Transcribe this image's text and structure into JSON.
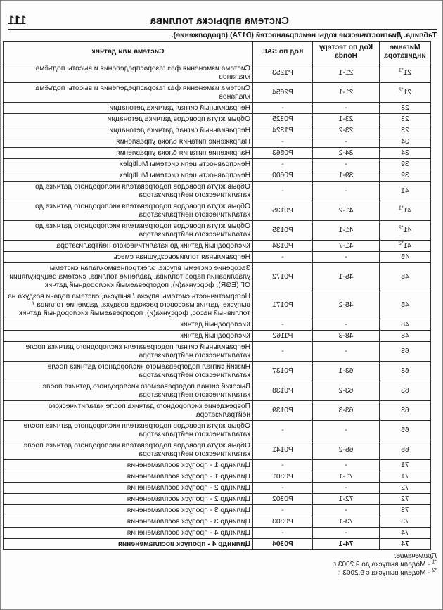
{
  "page_number": "111",
  "section_title": "Система впрыска топлива",
  "caption": "Таблица. Диагностические коды неисправностей (D17A) (продолжение).",
  "columns": [
    "Мигание индикатора",
    "Код по тестеру Honda",
    "Код по SAE",
    "Система или датчик"
  ],
  "rows": [
    {
      "flash": "21",
      "sup": "*1",
      "honda": "21-1",
      "sae": "P1253",
      "desc": "Система изменения фаз газораспределения и высоты подъёма клапанов"
    },
    {
      "flash": "21",
      "sup": "*2",
      "honda": "21-1",
      "sae": "P2654",
      "desc": "Система изменения фаз газораспределения и высоты подъёма клапанов"
    },
    {
      "flash": "23",
      "sup": "",
      "honda": "-",
      "sae": "-",
      "desc": "Неправильный сигнал датчика детонации"
    },
    {
      "flash": "23",
      "sup": "",
      "honda": "23-1",
      "sae": "P0325",
      "desc": "Обрыв жгута проводов датчика детонации"
    },
    {
      "flash": "23",
      "sup": "",
      "honda": "23-2",
      "sae": "P1324",
      "desc": "Неправильный сигнал датчика детонации"
    },
    {
      "flash": "34",
      "sup": "",
      "honda": "-",
      "sae": "-",
      "desc": "Напряжение питания блока управления"
    },
    {
      "flash": "34",
      "sup": "",
      "honda": "34-2",
      "sae": "P0563",
      "desc": "Напряжение питания блока управления"
    },
    {
      "flash": "39",
      "sup": "",
      "honda": "-",
      "sae": "-",
      "desc": "Неисправность цепи системы Multiplex"
    },
    {
      "flash": "39",
      "sup": "",
      "honda": "39-1",
      "sae": "P0600",
      "desc": "Неисправность цепи системы Multiplex"
    },
    {
      "flash": "41",
      "sup": "",
      "honda": "-",
      "sae": "-",
      "desc": "Обрыв жгута проводов подогревателя кислородного датчика до каталитического нейтрализатора"
    },
    {
      "flash": "41",
      "sup": "*1",
      "honda": "41-2",
      "sae": "P0135",
      "desc": "Обрыв жгута проводов подогревателя кислородного датчика до каталитического нейтрализатора"
    },
    {
      "flash": "41",
      "sup": "*2",
      "honda": "41-1",
      "sae": "P0135",
      "desc": "Обрыв жгута проводов подогревателя кислородного датчика до каталитического нейтрализатора"
    },
    {
      "flash": "41",
      "sup": "*2",
      "honda": "41-7",
      "sae": "P0134",
      "desc": "Кислородный датчик до каталитического нейтрализатора"
    },
    {
      "flash": "45",
      "sup": "",
      "honda": "-",
      "sae": "-",
      "desc": "Неправильная топливовоздушная смесь"
    },
    {
      "flash": "45",
      "sup": "",
      "honda": "45-1",
      "sae": "P0172",
      "desc": "Засорение системы впуска, электропневмоклапан системы улавливания паров топлива, давление топлива, система рециркуляции ОГ (EGR), форсунка(и), подогреваемый кислородный датчик"
    },
    {
      "flash": "45",
      "sup": "",
      "honda": "45-2",
      "sae": "P0171",
      "desc": "Негерметичность системы впуска / выпуска, система подачи воздуха на выпуске, датчик массового расхода воздуха, давление топлива / топливный насос, форсунка(и), подогреваемый кислородный датчик"
    },
    {
      "flash": "48",
      "sup": "",
      "honda": "-",
      "sae": "-",
      "desc": "Кислородный датчик"
    },
    {
      "flash": "48",
      "sup": "",
      "honda": "48-3",
      "sae": "P1162",
      "desc": "Кислородный датчик"
    },
    {
      "flash": "63",
      "sup": "",
      "honda": "-",
      "sae": "-",
      "desc": "Неправильный сигнал подогревателя кислородного датчика после каталитического нейтрализатора"
    },
    {
      "flash": "63",
      "sup": "",
      "honda": "63-1",
      "sae": "P0137",
      "desc": "Низкий сигнал подогреваемого кислородного датчика после каталитического нейтрализатора"
    },
    {
      "flash": "63",
      "sup": "",
      "honda": "63-2",
      "sae": "P0138",
      "desc": "Высокий сигнал подогреваемого кислородного датчика после каталитического нейтрализатора"
    },
    {
      "flash": "63",
      "sup": "",
      "honda": "63-3",
      "sae": "P0139",
      "desc": "Повреждение кислородного датчика после каталитического нейтрализатора"
    },
    {
      "flash": "65",
      "sup": "",
      "honda": "-",
      "sae": "-",
      "desc": "Обрыв жгута проводов подогревателя кислородного датчика после каталитического нейтрализатора"
    },
    {
      "flash": "65",
      "sup": "",
      "honda": "65-2",
      "sae": "P0141",
      "desc": "Обрыв жгута проводов подогревателя кислородного датчика после каталитического нейтрализатора"
    },
    {
      "flash": "71",
      "sup": "",
      "honda": "-",
      "sae": "-",
      "desc": "Цилиндр 1 - пропуск воспламенения"
    },
    {
      "flash": "71",
      "sup": "",
      "honda": "71-1",
      "sae": "P0301",
      "desc": "Цилиндр 1 - пропуск воспламенения"
    },
    {
      "flash": "72",
      "sup": "",
      "honda": "-",
      "sae": "-",
      "desc": "Цилиндр 2 - пропуск воспламенения"
    },
    {
      "flash": "72",
      "sup": "",
      "honda": "72-1",
      "sae": "P0302",
      "desc": "Цилиндр 2 - пропуск воспламенения"
    },
    {
      "flash": "73",
      "sup": "",
      "honda": "-",
      "sae": "-",
      "desc": "Цилиндр 3 - пропуск воспламенения"
    },
    {
      "flash": "73",
      "sup": "",
      "honda": "73-1",
      "sae": "P0303",
      "desc": "Цилиндр 3 - пропуск воспламенения"
    },
    {
      "flash": "74",
      "sup": "",
      "honda": "-",
      "sae": "-",
      "desc": "Цилиндр 4 - пропуск воспламенения"
    },
    {
      "flash": "74",
      "sup": "",
      "honda": "74-1",
      "sae": "P0304",
      "desc": "Цилиндр 4 - пропуск воспламенения"
    }
  ],
  "notes": {
    "heading": "Примечание:",
    "items": [
      {
        "mark": "*1",
        "text": " - Модели выпуска до 9.2003 г."
      },
      {
        "mark": "*2",
        "text": " - Модели выпуска с 9.2003 г."
      }
    ]
  }
}
